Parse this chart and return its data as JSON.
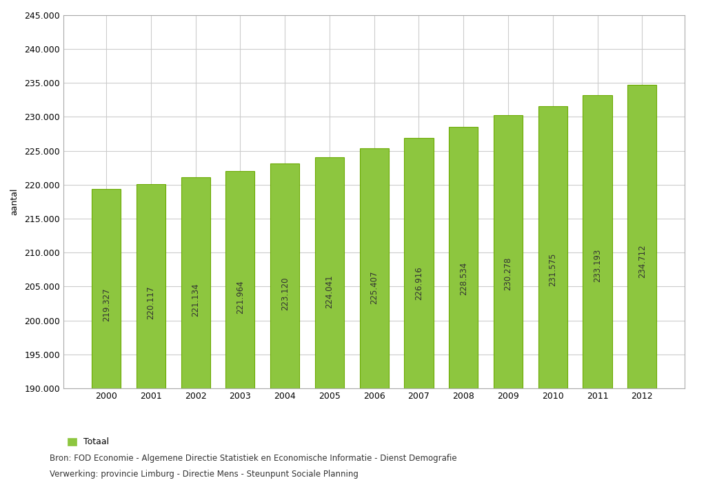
{
  "years": [
    2000,
    2001,
    2002,
    2003,
    2004,
    2005,
    2006,
    2007,
    2008,
    2009,
    2010,
    2011,
    2012
  ],
  "values": [
    219327,
    220117,
    221134,
    221964,
    223120,
    224041,
    225407,
    226916,
    228534,
    230278,
    231575,
    233193,
    234712
  ],
  "labels": [
    "219.327",
    "220.117",
    "221.134",
    "221.964",
    "223.120",
    "224.041",
    "225.407",
    "226.916",
    "228.534",
    "230.278",
    "231.575",
    "233.193",
    "234.712"
  ],
  "bar_color": "#8dc63f",
  "bar_edge_color": "#6aaa00",
  "background_color": "#ffffff",
  "plot_bg_color": "#ffffff",
  "grid_color": "#cccccc",
  "ylabel": "aantal",
  "ylim_min": 190000,
  "ylim_max": 245000,
  "ytick_step": 5000,
  "legend_label": "Totaal",
  "source_line1": "Bron: FOD Economie - Algemene Directie Statistiek en Economische Informatie - Dienst Demografie",
  "source_line2": "Verwerking: provincie Limburg - Directie Mens - Steunpunt Sociale Planning",
  "label_fontsize": 8.5,
  "axis_fontsize": 9,
  "source_fontsize": 8.5,
  "legend_fontsize": 9
}
